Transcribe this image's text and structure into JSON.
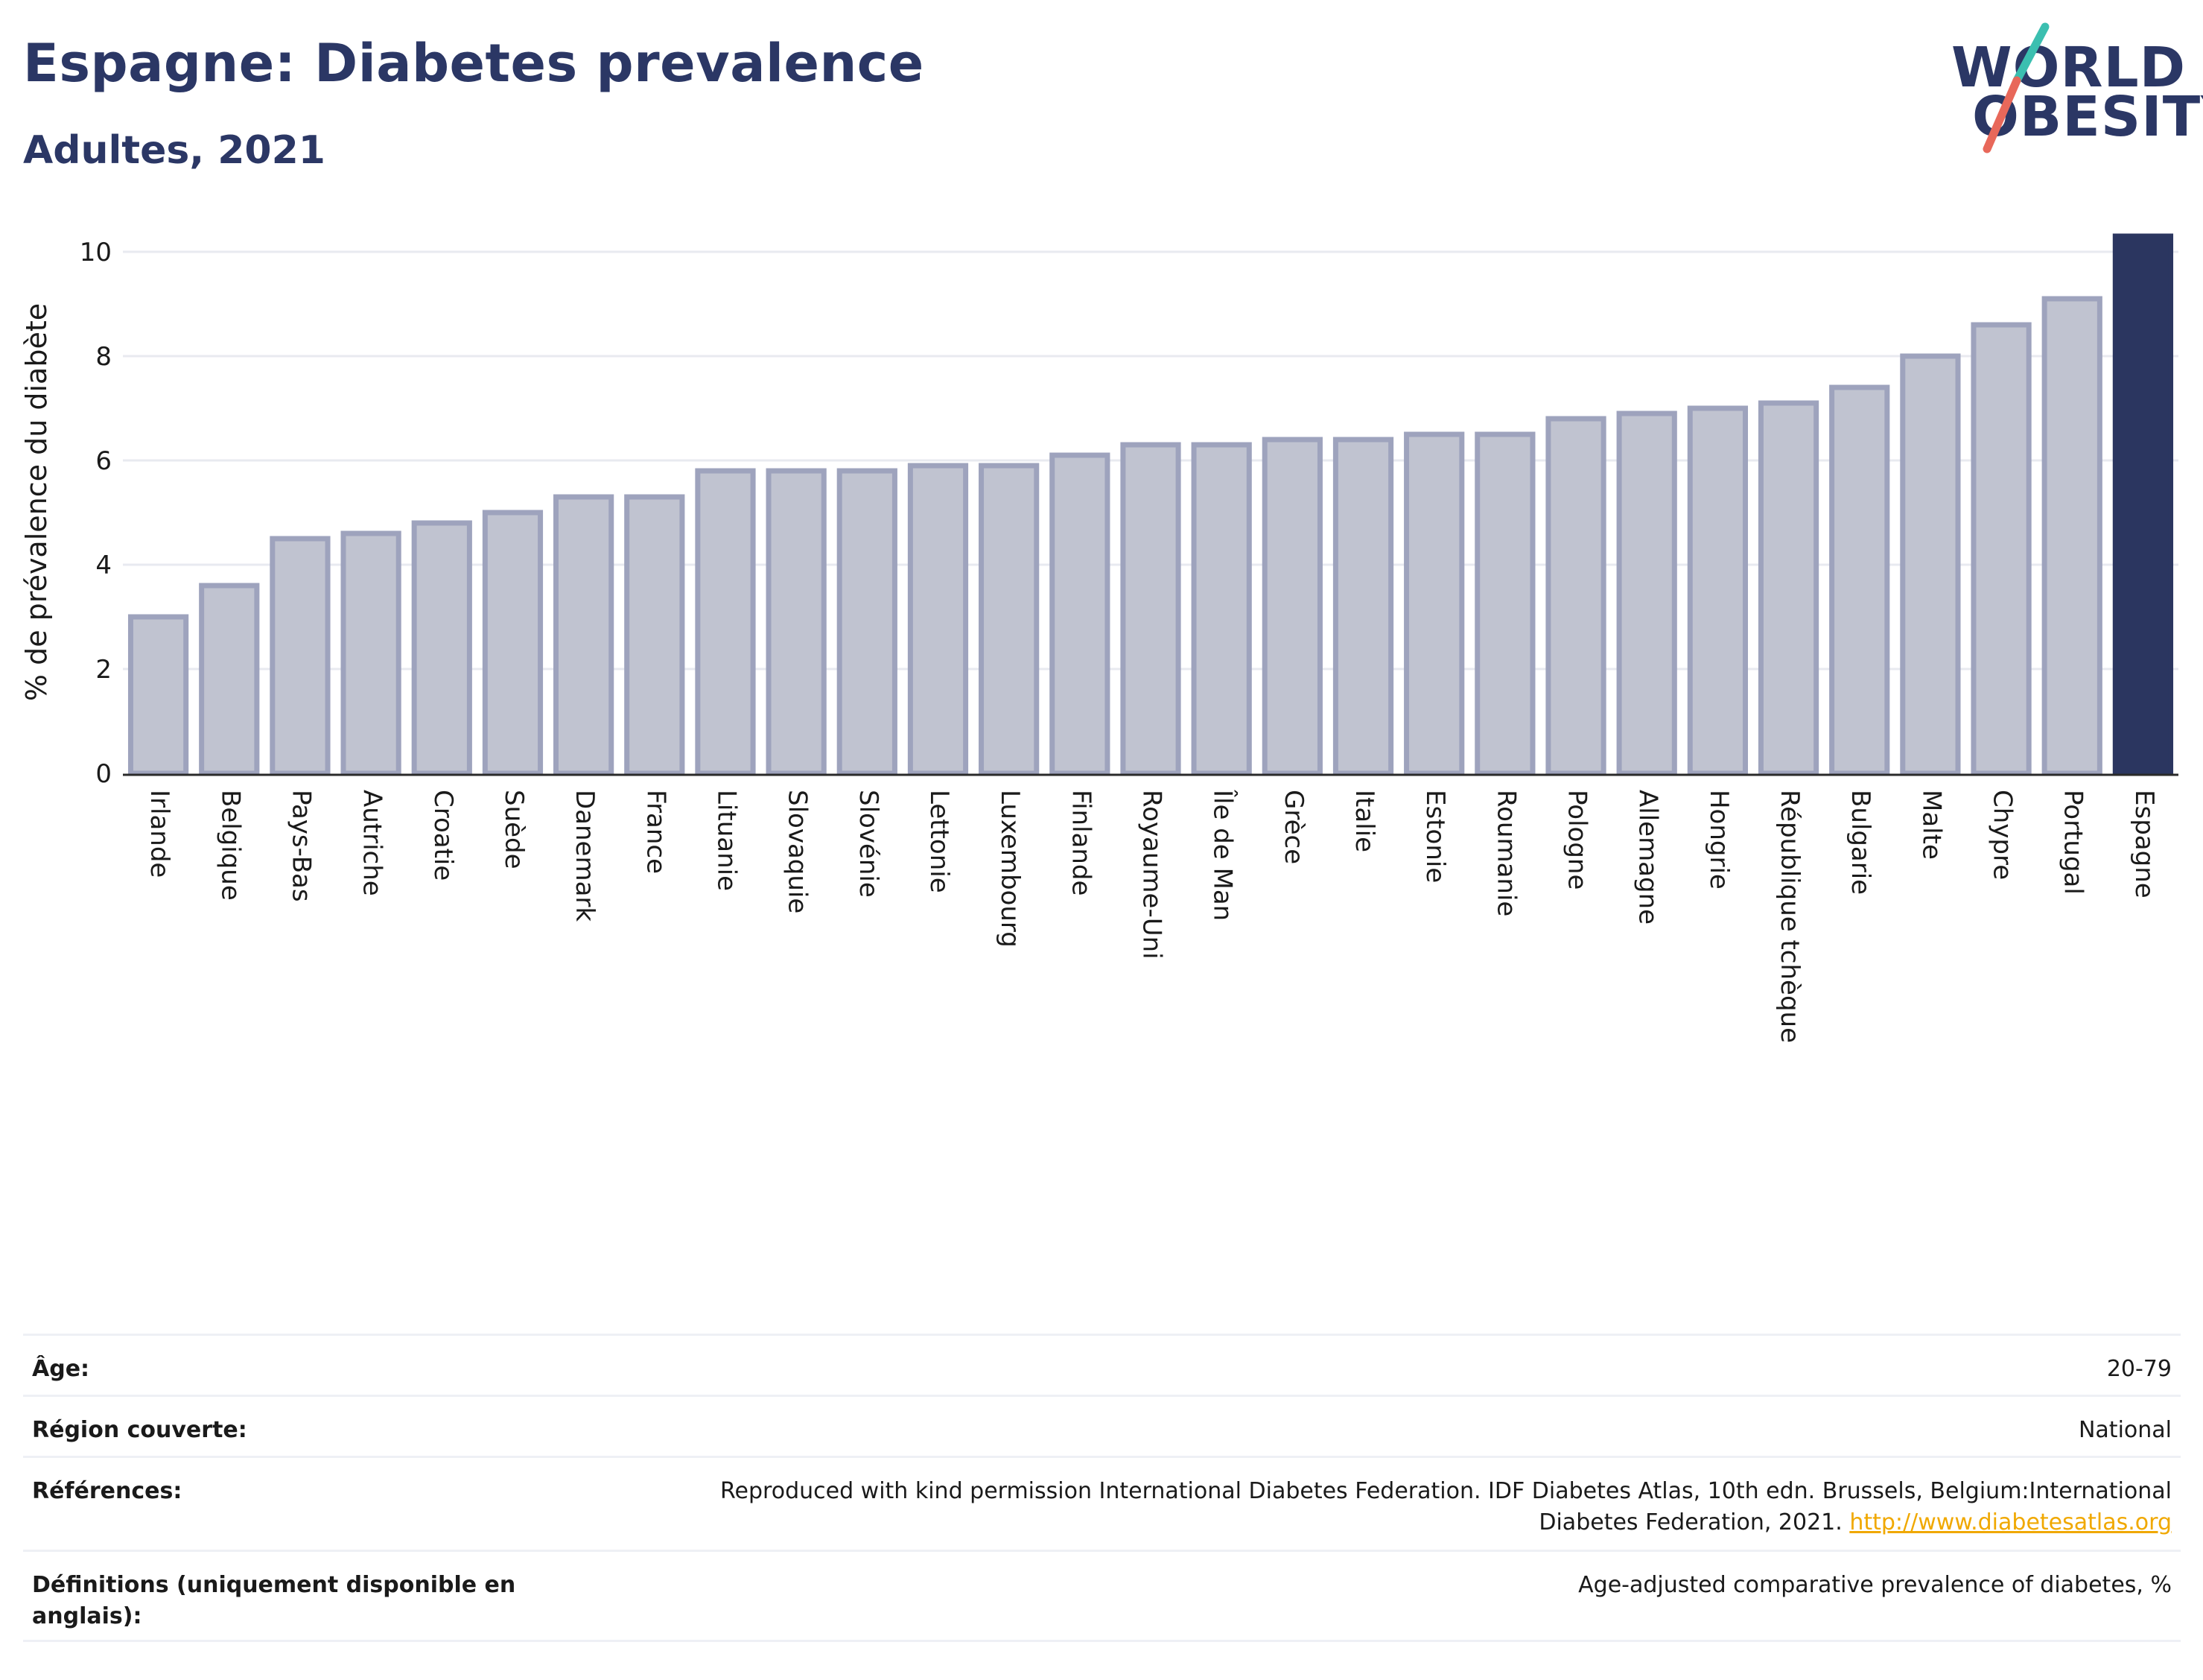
{
  "header": {
    "title": "Espagne: Diabetes prevalence",
    "subtitle": "Adultes, 2021"
  },
  "logo": {
    "line1": "WORLD",
    "line2": "OBESITY",
    "colors": {
      "text": "#2b3765",
      "slash_top": "#3bbfb0",
      "slash_bottom": "#e8685a"
    }
  },
  "chart_data": {
    "type": "bar",
    "title": "",
    "xlabel": "",
    "ylabel": "% de prévalence du diabète",
    "ylim": [
      0,
      10.4
    ],
    "yticks": [
      0,
      2,
      4,
      6,
      8,
      10
    ],
    "grid": true,
    "categories": [
      "Irlande",
      "Belgique",
      "Pays-Bas",
      "Autriche",
      "Croatie",
      "Suède",
      "Danemark",
      "France",
      "Lituanie",
      "Slovaquie",
      "Slovénie",
      "Lettonie",
      "Luxembourg",
      "Finlande",
      "Royaume-Uni",
      "Île de Man",
      "Grèce",
      "Italie",
      "Estonie",
      "Roumanie",
      "Pologne",
      "Allemagne",
      "Hongrie",
      "République tchèque",
      "Bulgarie",
      "Malte",
      "Chypre",
      "Portugal",
      "Espagne"
    ],
    "values": [
      3.0,
      3.6,
      4.5,
      4.6,
      4.8,
      5.0,
      5.3,
      5.3,
      5.8,
      5.8,
      5.8,
      5.9,
      5.9,
      6.1,
      6.3,
      6.3,
      6.4,
      6.4,
      6.5,
      6.5,
      6.8,
      6.9,
      7.0,
      7.1,
      7.4,
      8.0,
      8.6,
      9.1,
      10.3
    ],
    "highlight": "Espagne",
    "colors": {
      "bar": "#c0c3d0",
      "bar_border": "#9ea3bd",
      "highlight": "#2b3660"
    }
  },
  "details": [
    {
      "label": "Âge:",
      "value": "20-79"
    },
    {
      "label": "Région couverte:",
      "value": "National"
    },
    {
      "label": "Références:",
      "value": "Reproduced with kind permission International Diabetes Federation.  IDF Diabetes Atlas, 10th edn. Brussels, Belgium:International Diabetes Federation, 2021.",
      "link": "http://www.diabetesatlas.org"
    },
    {
      "label": "Définitions (uniquement disponible en anglais):",
      "value": "Age-adjusted comparative prevalence of diabetes, %"
    }
  ]
}
